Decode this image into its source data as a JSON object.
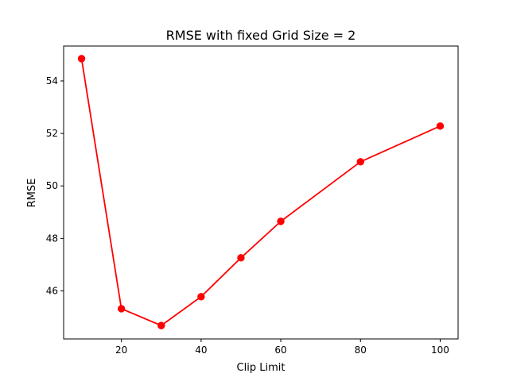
{
  "chart_data": {
    "type": "line",
    "title": "RMSE with fixed Grid Size = 2",
    "xlabel": "Clip Limit",
    "ylabel": "RMSE",
    "xlim": [
      5.5,
      104.5
    ],
    "ylim": [
      44.17,
      55.33
    ],
    "xticks": [
      20,
      40,
      60,
      80,
      100
    ],
    "yticks": [
      46,
      48,
      50,
      52,
      54
    ],
    "grid": false,
    "series": [
      {
        "color": "#ff0000",
        "marker": "circle",
        "points": [
          {
            "x": 10,
            "y": 54.85
          },
          {
            "x": 20,
            "y": 45.32
          },
          {
            "x": 30,
            "y": 44.68
          },
          {
            "x": 40,
            "y": 45.78
          },
          {
            "x": 50,
            "y": 47.26
          },
          {
            "x": 60,
            "y": 48.65
          },
          {
            "x": 80,
            "y": 50.92
          },
          {
            "x": 100,
            "y": 52.28
          }
        ]
      }
    ]
  }
}
